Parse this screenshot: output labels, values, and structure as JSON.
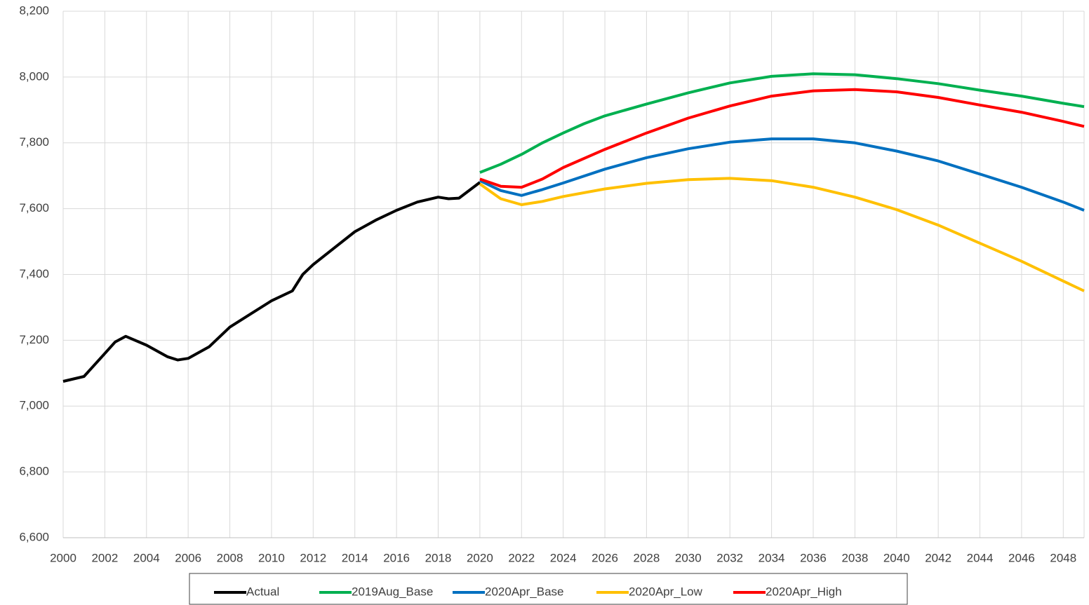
{
  "chart_data": {
    "type": "line",
    "xlim": [
      2000,
      2049
    ],
    "xticks": [
      2000,
      2002,
      2004,
      2006,
      2008,
      2010,
      2012,
      2014,
      2016,
      2018,
      2020,
      2022,
      2024,
      2026,
      2028,
      2030,
      2032,
      2034,
      2036,
      2038,
      2040,
      2042,
      2044,
      2046,
      2048
    ],
    "ylim": [
      6600,
      8200
    ],
    "yticks": [
      {
        "value": 6600,
        "label": "6,600"
      },
      {
        "value": 6800,
        "label": "6,800"
      },
      {
        "value": 7000,
        "label": "7,000"
      },
      {
        "value": 7200,
        "label": "7,200"
      },
      {
        "value": 7400,
        "label": "7,400"
      },
      {
        "value": 7600,
        "label": "7,600"
      },
      {
        "value": 7800,
        "label": "7,800"
      },
      {
        "value": 8000,
        "label": "8,000"
      },
      {
        "value": 8200,
        "label": "8,200"
      }
    ],
    "grid": true,
    "legend": "bottom",
    "series": [
      {
        "name": "Actual",
        "color": "#000000",
        "x": [
          2000,
          2001,
          2002,
          2002.5,
          2003,
          2004,
          2005,
          2005.5,
          2006,
          2007,
          2008,
          2009,
          2010,
          2011,
          2011.5,
          2012,
          2013,
          2014,
          2015,
          2016,
          2017,
          2018,
          2018.5,
          2019,
          2020
        ],
        "values": [
          7075,
          7090,
          7160,
          7195,
          7212,
          7185,
          7150,
          7140,
          7145,
          7180,
          7240,
          7280,
          7320,
          7350,
          7400,
          7430,
          7480,
          7530,
          7565,
          7595,
          7620,
          7635,
          7630,
          7632,
          7680
        ]
      },
      {
        "name": "2019Aug_Base",
        "color": "#00b050",
        "x": [
          2020,
          2021,
          2022,
          2023,
          2024,
          2025,
          2026,
          2028,
          2030,
          2032,
          2034,
          2036,
          2038,
          2040,
          2042,
          2044,
          2046,
          2048,
          2049
        ],
        "values": [
          7710,
          7735,
          7765,
          7800,
          7830,
          7858,
          7882,
          7918,
          7952,
          7982,
          8002,
          8010,
          8007,
          7995,
          7980,
          7960,
          7942,
          7920,
          7910
        ]
      },
      {
        "name": "2020Apr_Base",
        "color": "#0070c0",
        "x": [
          2020,
          2021,
          2022,
          2023,
          2024,
          2026,
          2028,
          2030,
          2032,
          2034,
          2036,
          2038,
          2040,
          2042,
          2044,
          2046,
          2048,
          2049
        ],
        "values": [
          7685,
          7655,
          7640,
          7658,
          7678,
          7720,
          7755,
          7782,
          7802,
          7812,
          7812,
          7800,
          7775,
          7745,
          7705,
          7665,
          7620,
          7595
        ]
      },
      {
        "name": "2020Apr_Low",
        "color": "#ffc000",
        "x": [
          2020,
          2021,
          2022,
          2023,
          2024,
          2026,
          2028,
          2030,
          2032,
          2034,
          2036,
          2038,
          2040,
          2042,
          2044,
          2046,
          2048,
          2049
        ],
        "values": [
          7675,
          7630,
          7612,
          7622,
          7637,
          7660,
          7677,
          7688,
          7692,
          7685,
          7665,
          7635,
          7597,
          7550,
          7495,
          7440,
          7380,
          7350
        ]
      },
      {
        "name": "2020Apr_High",
        "color": "#ff0000",
        "x": [
          2020,
          2021,
          2022,
          2023,
          2024,
          2026,
          2028,
          2030,
          2032,
          2034,
          2036,
          2038,
          2040,
          2042,
          2044,
          2046,
          2048,
          2049
        ],
        "values": [
          7690,
          7668,
          7665,
          7690,
          7725,
          7780,
          7830,
          7875,
          7912,
          7942,
          7958,
          7962,
          7955,
          7938,
          7915,
          7893,
          7865,
          7850
        ]
      }
    ]
  }
}
